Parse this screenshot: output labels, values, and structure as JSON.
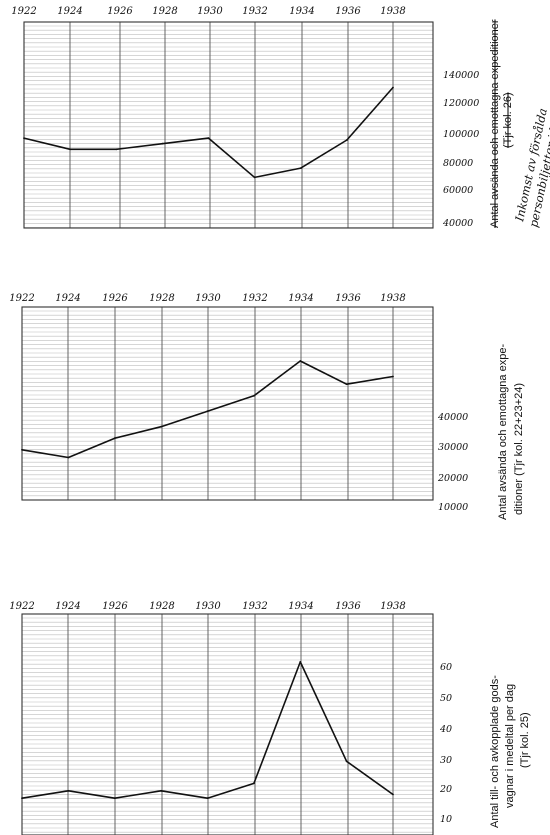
{
  "chart_data": [
    {
      "type": "line",
      "x": [
        1922,
        1924,
        1926,
        1928,
        1930,
        1932,
        1934,
        1936,
        1938
      ],
      "x_tick_labels": [
        "1922",
        "1924",
        "1926",
        "1928",
        "1930",
        "1932",
        "1934",
        "1936",
        "1938"
      ],
      "series": [
        {
          "values": [
            88000,
            82000,
            82000,
            85000,
            88000,
            67000,
            72000,
            87000,
            115000
          ]
        }
      ],
      "ylim": [
        40000,
        150000
      ],
      "y_tick_labels": [
        "140000",
        "120000",
        "100000",
        "80000",
        "60000",
        "40000"
      ],
      "ylabel_struck": "Antal avsända och emottagna expeditioner",
      "ylabel_struck_ref": "(Tjr kol. 26)",
      "ylabel_handwritten": [
        "Inkomst av försålda",
        "personbiljetter i kronor"
      ],
      "grid": true
    },
    {
      "type": "line",
      "x": [
        1922,
        1924,
        1926,
        1928,
        1930,
        1932,
        1934,
        1936,
        1938
      ],
      "x_tick_labels": [
        "1922",
        "1924",
        "1926",
        "1928",
        "1930",
        "1932",
        "1934",
        "1936",
        "1938"
      ],
      "series": [
        {
          "values": [
            21000,
            19000,
            24000,
            27000,
            31000,
            35000,
            44000,
            38000,
            40000
          ]
        }
      ],
      "ylim": [
        8000,
        58000
      ],
      "y_tick_labels": [
        "40000",
        "30000",
        "20000",
        "10000"
      ],
      "ylabel": [
        "Antal avsända och emottagna expe-",
        "ditioner (Tjr kol. 22+23+24)"
      ],
      "grid": true
    },
    {
      "type": "line",
      "x": [
        1922,
        1924,
        1926,
        1928,
        1930,
        1932,
        1934,
        1936,
        1938
      ],
      "x_tick_labels": [
        "1922",
        "1924",
        "1926",
        "1928",
        "1930",
        "1932",
        "1934",
        "1936",
        "1938"
      ],
      "series": [
        {
          "values": [
            20,
            22,
            20,
            22,
            20,
            24,
            57,
            30,
            21
          ]
        }
      ],
      "ylim": [
        10,
        70
      ],
      "y_tick_labels": [
        "60",
        "50",
        "40",
        "30",
        "20",
        "10"
      ],
      "ylabel": [
        "Antal till- och avkopplade gods-",
        "vagnar i medeltal per dag",
        "(Tjr kol. 25)"
      ],
      "grid": true
    }
  ]
}
